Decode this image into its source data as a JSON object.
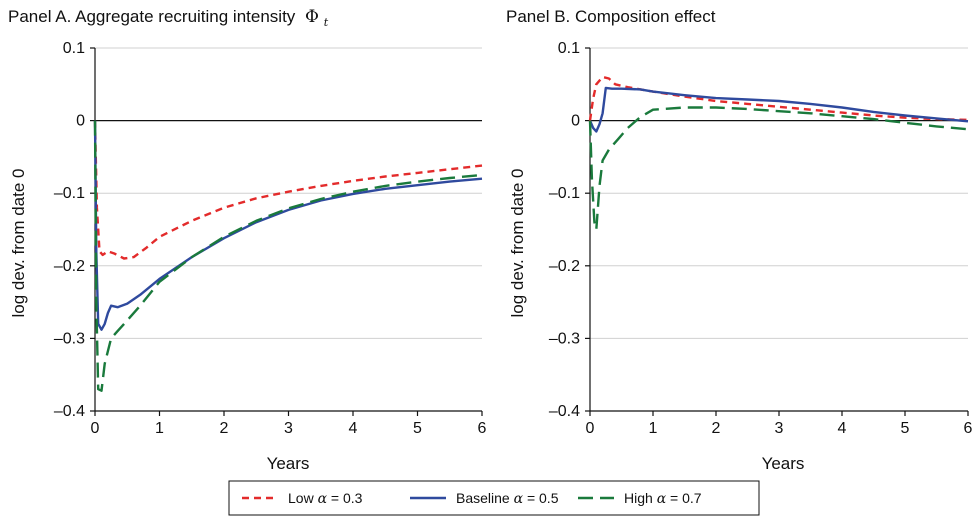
{
  "legend": {
    "items": [
      {
        "name": "Low",
        "alpha": "0.3",
        "color": "#e32b2b",
        "dash": "dashed-short"
      },
      {
        "name": "Baseline",
        "alpha": "0.5",
        "color": "#2f4a9e",
        "dash": "solid"
      },
      {
        "name": "High",
        "alpha": "0.7",
        "color": "#1a7a3c",
        "dash": "dashed-long"
      }
    ],
    "alpha_symbol": "α",
    "equals": "="
  },
  "chart_data": [
    {
      "type": "line",
      "title": "Panel A. Aggregate recruiting intensity",
      "title_symbol": "Φ",
      "title_subscript": "t",
      "xlabel": "Years",
      "ylabel": "log dev. from date 0",
      "xlim": [
        0,
        6
      ],
      "ylim": [
        -0.4,
        0.1
      ],
      "xticks": [
        0,
        1,
        2,
        3,
        4,
        5,
        6
      ],
      "yticks": [
        0.1,
        0,
        -0.1,
        -0.2,
        -0.3,
        -0.4
      ],
      "ytick_labels": [
        "0.1",
        "0",
        "–0.1",
        "–0.2",
        "–0.3",
        "–0.4"
      ],
      "zero_line": true,
      "grid": "horizontal",
      "series": [
        {
          "name": "Low α = 0.3",
          "color": "#e32b2b",
          "dash": "dashed-short",
          "x": [
            0,
            0.03,
            0.07,
            0.12,
            0.2,
            0.3,
            0.45,
            0.6,
            0.8,
            1.0,
            1.5,
            2.0,
            2.5,
            3.0,
            3.5,
            4.0,
            4.5,
            5.0,
            5.5,
            6.0
          ],
          "y": [
            0,
            -0.12,
            -0.18,
            -0.185,
            -0.18,
            -0.183,
            -0.19,
            -0.188,
            -0.175,
            -0.16,
            -0.138,
            -0.12,
            -0.107,
            -0.098,
            -0.09,
            -0.083,
            -0.077,
            -0.072,
            -0.067,
            -0.062
          ]
        },
        {
          "name": "Baseline α = 0.5",
          "color": "#2f4a9e",
          "dash": "solid",
          "x": [
            0,
            0.02,
            0.05,
            0.1,
            0.15,
            0.2,
            0.25,
            0.35,
            0.5,
            0.7,
            1.0,
            1.5,
            2.0,
            2.5,
            3.0,
            3.5,
            4.0,
            4.5,
            5.0,
            5.5,
            6.0
          ],
          "y": [
            0,
            -0.18,
            -0.28,
            -0.288,
            -0.28,
            -0.265,
            -0.255,
            -0.257,
            -0.252,
            -0.24,
            -0.218,
            -0.188,
            -0.162,
            -0.14,
            -0.123,
            -0.11,
            -0.101,
            -0.094,
            -0.089,
            -0.084,
            -0.08
          ]
        },
        {
          "name": "High α = 0.7",
          "color": "#1a7a3c",
          "dash": "dashed-long",
          "x": [
            0,
            0.02,
            0.05,
            0.1,
            0.15,
            0.25,
            0.35,
            0.5,
            0.7,
            1.0,
            1.5,
            2.0,
            2.5,
            3.0,
            3.5,
            4.0,
            4.5,
            5.0,
            5.5,
            6.0
          ],
          "y": [
            0,
            -0.25,
            -0.37,
            -0.372,
            -0.335,
            -0.3,
            -0.29,
            -0.275,
            -0.255,
            -0.222,
            -0.188,
            -0.16,
            -0.138,
            -0.121,
            -0.108,
            -0.098,
            -0.09,
            -0.084,
            -0.079,
            -0.075
          ]
        }
      ]
    },
    {
      "type": "line",
      "title": "Panel B. Composition effect",
      "xlabel": "Years",
      "ylabel": "log dev. from date 0",
      "xlim": [
        0,
        6
      ],
      "ylim": [
        -0.4,
        0.1
      ],
      "xticks": [
        0,
        1,
        2,
        3,
        4,
        5,
        6
      ],
      "yticks": [
        0.1,
        0,
        -0.1,
        -0.2,
        -0.3,
        -0.4
      ],
      "ytick_labels": [
        "0.1",
        "0",
        "–0.1",
        "–0.2",
        "–0.3",
        "–0.4"
      ],
      "zero_line": true,
      "grid": "horizontal",
      "series": [
        {
          "name": "Low α = 0.3",
          "color": "#e32b2b",
          "dash": "dashed-short",
          "x": [
            0,
            0.05,
            0.1,
            0.2,
            0.3,
            0.4,
            0.6,
            1.0,
            1.5,
            2.0,
            2.5,
            3.0,
            3.5,
            4.0,
            4.5,
            5.0,
            5.5,
            6.0
          ],
          "y": [
            0,
            0.03,
            0.05,
            0.06,
            0.058,
            0.05,
            0.046,
            0.04,
            0.033,
            0.027,
            0.023,
            0.019,
            0.015,
            0.011,
            0.007,
            0.004,
            0.002,
            0.001
          ]
        },
        {
          "name": "Baseline α = 0.5",
          "color": "#2f4a9e",
          "dash": "solid",
          "x": [
            0,
            0.05,
            0.1,
            0.15,
            0.2,
            0.25,
            0.35,
            0.5,
            0.8,
            1.0,
            1.5,
            2.0,
            2.5,
            3.0,
            3.5,
            4.0,
            4.5,
            5.0,
            5.5,
            6.0
          ],
          "y": [
            0,
            -0.01,
            -0.015,
            -0.005,
            0.01,
            0.045,
            0.044,
            0.044,
            0.043,
            0.04,
            0.035,
            0.031,
            0.029,
            0.027,
            0.023,
            0.018,
            0.012,
            0.007,
            0.003,
            -0.001
          ]
        },
        {
          "name": "High α = 0.7",
          "color": "#1a7a3c",
          "dash": "dashed-long",
          "x": [
            0,
            0.03,
            0.07,
            0.1,
            0.15,
            0.2,
            0.3,
            0.45,
            0.6,
            0.8,
            1.0,
            1.5,
            2.0,
            2.5,
            3.0,
            3.5,
            4.0,
            4.5,
            5.0,
            5.5,
            6.0
          ],
          "y": [
            0,
            -0.08,
            -0.14,
            -0.15,
            -0.09,
            -0.055,
            -0.04,
            -0.025,
            -0.01,
            0.005,
            0.015,
            0.018,
            0.018,
            0.016,
            0.013,
            0.01,
            0.006,
            0.002,
            -0.003,
            -0.008,
            -0.012
          ]
        }
      ]
    }
  ]
}
